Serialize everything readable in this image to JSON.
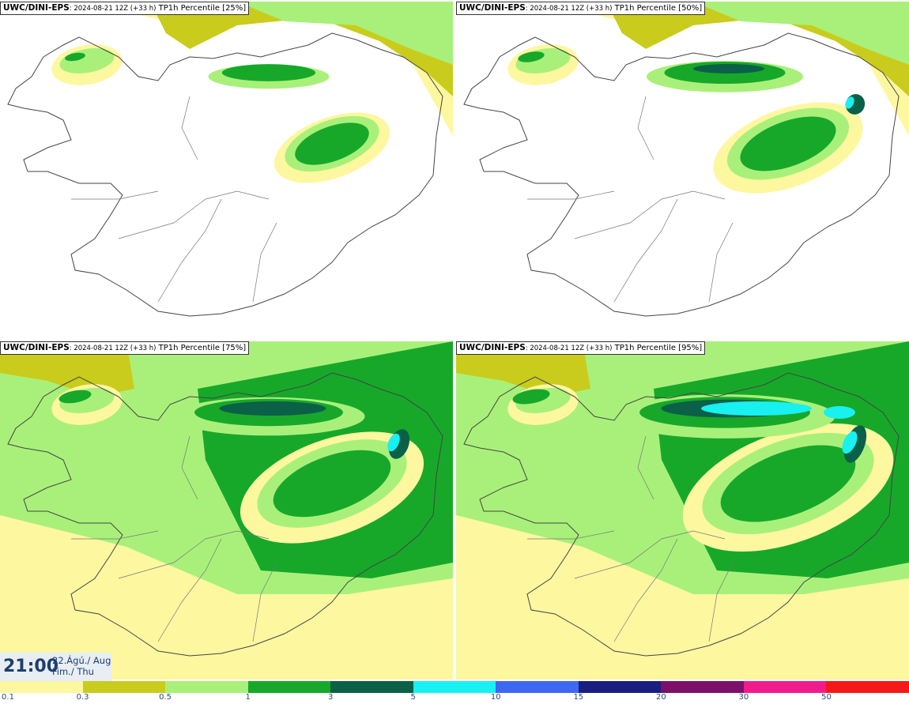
{
  "panels": [
    {
      "model": "UWC/DINI-EPS",
      "run": ": 2024-08-21 12Z (+33 h)",
      "field": "TP1h Percentile",
      "percentile": "[25%]",
      "intensity": 0.25
    },
    {
      "model": "UWC/DINI-EPS",
      "run": ": 2024-08-21 12Z (+33 h)",
      "field": "TP1h Percentile",
      "percentile": "[50%]",
      "intensity": 0.5
    },
    {
      "model": "UWC/DINI-EPS",
      "run": ": 2024-08-21 12Z (+33 h)",
      "field": "TP1h Percentile",
      "percentile": "[75%]",
      "intensity": 0.75
    },
    {
      "model": "UWC/DINI-EPS",
      "run": ": 2024-08-21 12Z (+33 h)",
      "field": "TP1h Percentile",
      "percentile": "[95%]",
      "intensity": 0.95
    }
  ],
  "valid_time": {
    "hour": "21:00",
    "date_line1": "22.Ágú./ Aug",
    "date_line2": "Fim./ Thu"
  },
  "colorbar": {
    "colors": [
      "#fdf7a0",
      "#c9cc1c",
      "#a9f07a",
      "#17a82a",
      "#0b6048",
      "#19f0f0",
      "#3d68f2",
      "#1a1e80",
      "#7d1068",
      "#f01c8c",
      "#f41818"
    ],
    "labels": [
      "0.1",
      "0.3",
      "0.5",
      "1",
      "3",
      "5",
      "10",
      "15",
      "20",
      "30",
      "50"
    ]
  },
  "palette": {
    "light_yellow": "#fdf7a0",
    "olive": "#c9cc1c",
    "light_green": "#a9f07a",
    "green": "#17a82a",
    "dark_green": "#0b6048",
    "cyan": "#19f0f0",
    "coast": "#444444"
  }
}
